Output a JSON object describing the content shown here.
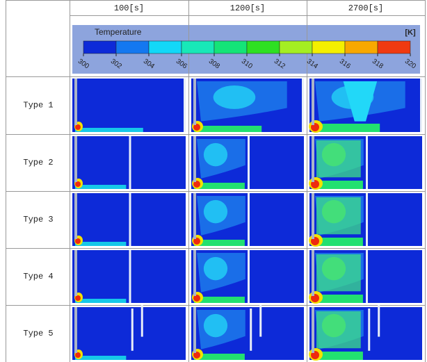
{
  "header": {
    "columns": [
      "100[s]",
      "1200[s]",
      "2700[s]"
    ]
  },
  "colorbar": {
    "title": "Temperature",
    "unit": "[K]",
    "ticks": [
      300,
      302,
      304,
      306,
      308,
      310,
      312,
      314,
      316,
      318,
      320
    ]
  },
  "rows": [
    "Type 1",
    "Type 2",
    "Type 3",
    "Type 4",
    "Type 5"
  ]
}
